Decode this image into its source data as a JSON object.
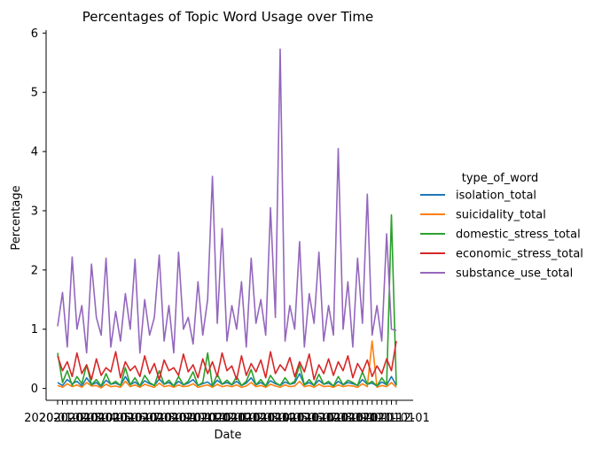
{
  "chart_data": {
    "type": "line",
    "title": "Percentages of Topic Word Usage over Time",
    "xlabel": "Date",
    "ylabel": "Percentage",
    "ylim": [
      -0.2,
      6.05
    ],
    "yticks": [
      0,
      1,
      2,
      3,
      4,
      5,
      6
    ],
    "x_tick_labels": [
      "2020-01-01",
      "2020-02-01",
      "2020-03-01",
      "2020-04-01",
      "2020-05-01",
      "2020-06-01",
      "2020-07-01",
      "2020-08-01",
      "2020-09-01",
      "2020-10-01",
      "2020-11-01",
      "2020-12-01",
      "2021-01-01",
      "2021-02-01",
      "2021-03-01",
      "2021-04-01",
      "2021-05-01",
      "2021-06-01",
      "2021-07-01",
      "2021-08-01",
      "2021-09-01",
      "2021-10-01",
      "2021-11-01",
      "2021-12-01"
    ],
    "grid": false,
    "legend": {
      "title": "type_of_word",
      "placement": "right-outside"
    },
    "series": [
      {
        "name": "isolation_total",
        "color": "#1f77b4",
        "values": [
          0.1,
          0.05,
          0.15,
          0.08,
          0.12,
          0.04,
          0.18,
          0.06,
          0.1,
          0.03,
          0.14,
          0.07,
          0.09,
          0.05,
          0.2,
          0.06,
          0.11,
          0.04,
          0.13,
          0.08,
          0.05,
          0.16,
          0.07,
          0.1,
          0.04,
          0.12,
          0.06,
          0.09,
          0.15,
          0.05,
          0.08,
          0.11,
          0.04,
          0.14,
          0.07,
          0.1,
          0.06,
          0.12,
          0.05,
          0.09,
          0.18,
          0.06,
          0.1,
          0.04,
          0.13,
          0.08,
          0.05,
          0.11,
          0.07,
          0.09,
          0.25,
          0.06,
          0.1,
          0.05,
          0.14,
          0.07,
          0.09,
          0.04,
          0.12,
          0.06,
          0.1,
          0.08,
          0.05,
          0.15,
          0.07,
          0.09,
          0.04,
          0.11,
          0.06,
          0.2,
          0.05
        ]
      },
      {
        "name": "suicidality_total",
        "color": "#ff7f0e",
        "values": [
          0.05,
          0.02,
          0.08,
          0.03,
          0.06,
          0.02,
          0.1,
          0.04,
          0.05,
          0.01,
          0.07,
          0.03,
          0.04,
          0.02,
          0.12,
          0.03,
          0.06,
          0.02,
          0.07,
          0.04,
          0.02,
          0.09,
          0.03,
          0.05,
          0.02,
          0.06,
          0.03,
          0.04,
          0.08,
          0.02,
          0.04,
          0.06,
          0.02,
          0.07,
          0.03,
          0.05,
          0.03,
          0.06,
          0.02,
          0.04,
          0.1,
          0.03,
          0.05,
          0.02,
          0.07,
          0.04,
          0.02,
          0.06,
          0.03,
          0.04,
          0.12,
          0.03,
          0.05,
          0.02,
          0.07,
          0.03,
          0.04,
          0.02,
          0.06,
          0.03,
          0.05,
          0.04,
          0.02,
          0.08,
          0.03,
          0.8,
          0.02,
          0.05,
          0.03,
          0.1,
          0.02
        ]
      },
      {
        "name": "domestic_stress_total",
        "color": "#2ca02c",
        "values": [
          0.6,
          0.1,
          0.3,
          0.05,
          0.2,
          0.08,
          0.4,
          0.06,
          0.15,
          0.04,
          0.25,
          0.07,
          0.12,
          0.05,
          0.35,
          0.06,
          0.18,
          0.04,
          0.22,
          0.1,
          0.05,
          0.3,
          0.07,
          0.14,
          0.04,
          0.2,
          0.06,
          0.12,
          0.28,
          0.05,
          0.1,
          0.6,
          0.04,
          0.24,
          0.07,
          0.14,
          0.06,
          0.2,
          0.05,
          0.12,
          0.32,
          0.06,
          0.15,
          0.04,
          0.22,
          0.1,
          0.05,
          0.18,
          0.07,
          0.12,
          0.4,
          0.06,
          0.15,
          0.05,
          0.24,
          0.07,
          0.12,
          0.04,
          0.2,
          0.06,
          0.14,
          0.1,
          0.05,
          0.28,
          0.07,
          0.12,
          0.04,
          0.18,
          0.06,
          2.93,
          0.05
        ]
      },
      {
        "name": "economic_stress_total",
        "color": "#d62728",
        "values": [
          0.55,
          0.3,
          0.45,
          0.2,
          0.6,
          0.25,
          0.4,
          0.15,
          0.5,
          0.22,
          0.35,
          0.28,
          0.62,
          0.18,
          0.45,
          0.3,
          0.38,
          0.2,
          0.55,
          0.25,
          0.42,
          0.15,
          0.48,
          0.3,
          0.35,
          0.22,
          0.58,
          0.28,
          0.4,
          0.18,
          0.5,
          0.25,
          0.45,
          0.2,
          0.6,
          0.3,
          0.38,
          0.15,
          0.55,
          0.22,
          0.42,
          0.28,
          0.48,
          0.18,
          0.62,
          0.25,
          0.4,
          0.3,
          0.52,
          0.2,
          0.45,
          0.28,
          0.58,
          0.15,
          0.4,
          0.25,
          0.5,
          0.22,
          0.45,
          0.3,
          0.55,
          0.18,
          0.42,
          0.28,
          0.48,
          0.2,
          0.38,
          0.25,
          0.5,
          0.3,
          0.8
        ]
      },
      {
        "name": "substance_use_total",
        "color": "#9467bd",
        "values": [
          1.05,
          1.62,
          0.7,
          2.22,
          1.0,
          1.4,
          0.6,
          2.1,
          1.2,
          0.9,
          2.2,
          0.7,
          1.3,
          0.8,
          1.6,
          1.0,
          2.18,
          0.6,
          1.5,
          0.9,
          1.2,
          2.25,
          0.8,
          1.4,
          0.6,
          2.3,
          1.0,
          1.2,
          0.75,
          1.8,
          0.9,
          1.5,
          3.58,
          1.1,
          2.7,
          0.8,
          1.4,
          1.0,
          1.8,
          0.7,
          2.2,
          1.1,
          1.5,
          0.9,
          3.05,
          1.2,
          5.73,
          0.8,
          1.4,
          1.0,
          2.48,
          0.7,
          1.6,
          1.1,
          2.3,
          0.8,
          1.4,
          0.9,
          4.05,
          1.0,
          1.8,
          0.7,
          2.2,
          1.1,
          3.28,
          0.9,
          1.4,
          0.8,
          2.61,
          1.0,
          0.98
        ]
      }
    ]
  }
}
